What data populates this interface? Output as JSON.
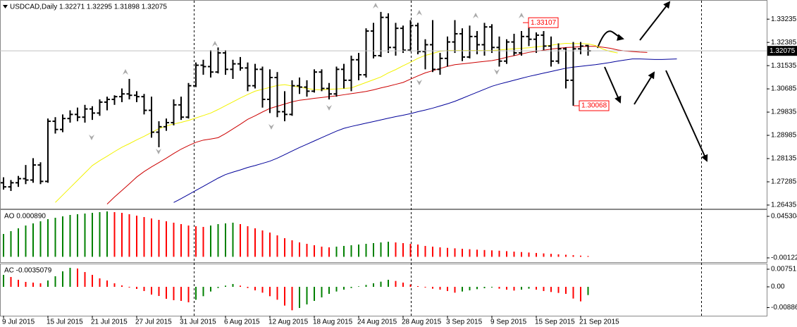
{
  "chart_data": [
    {
      "type": "ohlc",
      "title": "USDCAD,Daily  1.32271 1.32295 1.31898 1.32075",
      "categories": [
        "9 Jul 2015",
        null,
        null,
        null,
        null,
        null,
        "15 Jul 2015",
        null,
        null,
        null,
        null,
        null,
        "21 Jul 2015",
        null,
        null,
        null,
        null,
        null,
        "27 Jul 2015",
        null,
        null,
        null,
        null,
        null,
        "31 Jul 2015",
        null,
        null,
        null,
        null,
        null,
        "6 Aug 2015",
        null,
        null,
        null,
        null,
        null,
        "12 Aug 2015",
        null,
        null,
        null,
        null,
        null,
        "18 Aug 2015",
        null,
        null,
        null,
        null,
        null,
        "24 Aug 2015",
        null,
        null,
        null,
        null,
        null,
        "28 Aug 2015",
        null,
        null,
        null,
        null,
        null,
        "3 Sep 2015",
        null,
        null,
        null,
        null,
        null,
        "9 Sep 2015",
        null,
        null,
        null,
        null,
        null,
        "15 Sep 2015",
        null,
        null,
        null,
        null,
        null,
        "21 Sep 2015",
        null,
        null,
        null,
        null,
        null,
        null,
        null,
        null,
        null,
        null,
        null,
        null,
        null
      ],
      "ohlc": [
        [
          1.2725,
          1.2745,
          1.27,
          1.271
        ],
        [
          1.271,
          1.2735,
          1.2695,
          1.2725
        ],
        [
          1.2725,
          1.275,
          1.271,
          1.274
        ],
        [
          1.274,
          1.279,
          1.272,
          1.2735
        ],
        [
          1.2735,
          1.2815,
          1.2725,
          1.279
        ],
        [
          1.279,
          1.28,
          1.272,
          1.273
        ],
        [
          1.273,
          1.296,
          1.2725,
          1.295
        ],
        [
          1.295,
          1.2965,
          1.2905,
          1.292
        ],
        [
          1.292,
          1.2975,
          1.291,
          1.296
        ],
        [
          1.296,
          1.299,
          1.2945,
          1.2975
        ],
        [
          1.2975,
          1.3,
          1.295,
          1.2965
        ],
        [
          1.2965,
          1.301,
          1.2945,
          1.2995
        ],
        [
          1.2995,
          1.3005,
          1.2955,
          1.298
        ],
        [
          1.298,
          1.303,
          1.297,
          1.302
        ],
        [
          1.302,
          1.304,
          1.299,
          1.303
        ],
        [
          1.303,
          1.3045,
          1.301,
          1.304
        ],
        [
          1.304,
          1.307,
          1.302,
          1.305
        ],
        [
          1.305,
          1.3105,
          1.303,
          1.3045
        ],
        [
          1.3045,
          1.306,
          1.302,
          1.304
        ],
        [
          1.304,
          1.305,
          1.2975,
          1.299
        ],
        [
          1.299,
          1.304,
          1.289,
          1.291
        ],
        [
          1.291,
          1.295,
          1.2855,
          1.293
        ],
        [
          1.293,
          1.296,
          1.2915,
          1.2945
        ],
        [
          1.2945,
          1.303,
          1.2935,
          1.301
        ],
        [
          1.301,
          1.304,
          1.2955,
          1.2965
        ],
        [
          1.2965,
          1.309,
          1.296,
          1.308
        ],
        [
          1.308,
          1.3165,
          1.3075,
          1.3155
        ],
        [
          1.3155,
          1.3175,
          1.312,
          1.315
        ],
        [
          1.315,
          1.321,
          1.311,
          1.313
        ],
        [
          1.313,
          1.322,
          1.3125,
          1.32
        ],
        [
          1.32,
          1.321,
          1.312,
          1.314
        ],
        [
          1.314,
          1.3175,
          1.3105,
          1.316
        ],
        [
          1.316,
          1.3185,
          1.3135,
          1.3145
        ],
        [
          1.3145,
          1.3165,
          1.306,
          1.308
        ],
        [
          1.308,
          1.316,
          1.307,
          1.314
        ],
        [
          1.314,
          1.315,
          1.3,
          1.303
        ],
        [
          1.303,
          1.314,
          1.298,
          1.311
        ],
        [
          1.311,
          1.313,
          1.2965,
          1.2985
        ],
        [
          1.2985,
          1.306,
          1.295,
          1.2975
        ],
        [
          1.2975,
          1.31,
          1.297,
          1.308
        ],
        [
          1.308,
          1.311,
          1.305,
          1.3075
        ],
        [
          1.3075,
          1.31,
          1.304,
          1.306
        ],
        [
          1.306,
          1.314,
          1.3055,
          1.313
        ],
        [
          1.313,
          1.314,
          1.306,
          1.307
        ],
        [
          1.307,
          1.309,
          1.303,
          1.305
        ],
        [
          1.305,
          1.315,
          1.304,
          1.314
        ],
        [
          1.314,
          1.316,
          1.307,
          1.31
        ],
        [
          1.31,
          1.319,
          1.306,
          1.3175
        ],
        [
          1.3175,
          1.32,
          1.31,
          1.312
        ],
        [
          1.312,
          1.329,
          1.311,
          1.328
        ],
        [
          1.328,
          1.331,
          1.318,
          1.319
        ],
        [
          1.319,
          1.335,
          1.3185,
          1.333
        ],
        [
          1.333,
          1.3345,
          1.32,
          1.322
        ],
        [
          1.322,
          1.331,
          1.319,
          1.329
        ],
        [
          1.329,
          1.33,
          1.32,
          1.321
        ],
        [
          1.321,
          1.332,
          1.3205,
          1.33
        ],
        [
          1.33,
          1.331,
          1.3195,
          1.3205
        ],
        [
          1.3205,
          1.325,
          1.314,
          1.323
        ],
        [
          1.323,
          1.332,
          1.313,
          1.314
        ],
        [
          1.314,
          1.32,
          1.312,
          1.318
        ],
        [
          1.318,
          1.326,
          1.315,
          1.324
        ],
        [
          1.324,
          1.332,
          1.32,
          1.327
        ],
        [
          1.327,
          1.329,
          1.317,
          1.3185
        ],
        [
          1.3185,
          1.33,
          1.318,
          1.326
        ],
        [
          1.326,
          1.328,
          1.3195,
          1.323
        ],
        [
          1.323,
          1.331,
          1.319,
          1.3295
        ],
        [
          1.3295,
          1.3305,
          1.32,
          1.322
        ],
        [
          1.322,
          1.326,
          1.315,
          1.317
        ],
        [
          1.317,
          1.325,
          1.316,
          1.324
        ],
        [
          1.324,
          1.327,
          1.319,
          1.32
        ],
        [
          1.32,
          1.328,
          1.319,
          1.326
        ],
        [
          1.326,
          1.33107,
          1.3225,
          1.325
        ],
        [
          1.325,
          1.3275,
          1.32,
          1.3265
        ],
        [
          1.3265,
          1.328,
          1.321,
          1.3225
        ],
        [
          1.3225,
          1.326,
          1.315,
          1.317
        ],
        [
          1.317,
          1.3235,
          1.316,
          1.3215
        ],
        [
          1.3215,
          1.322,
          1.307,
          1.31
        ],
        [
          1.31,
          1.324,
          1.30068,
          1.3215
        ],
        [
          1.3215,
          1.324,
          1.3195,
          1.3225
        ],
        [
          1.32271,
          1.32295,
          1.31898,
          1.32075
        ],
        null,
        null,
        null,
        null,
        null,
        null,
        null,
        null,
        null,
        null,
        null,
        null
      ],
      "bar_color": "#000000",
      "series": [
        {
          "color": "#000099",
          "values": [
            null,
            null,
            null,
            null,
            null,
            null,
            null,
            null,
            null,
            null,
            null,
            null,
            null,
            null,
            null,
            null,
            null,
            null,
            null,
            null,
            null,
            null,
            null,
            1.2653,
            1.2667,
            1.2682,
            1.2697,
            1.2712,
            1.2727,
            1.2742,
            1.2755,
            1.2764,
            1.2772,
            1.2781,
            1.2788,
            1.2796,
            1.2804,
            1.2815,
            1.2828,
            1.2841,
            1.2854,
            1.2866,
            1.2878,
            1.289,
            1.2902,
            1.2914,
            1.2924,
            1.2931,
            1.2937,
            1.2943,
            1.2949,
            1.2955,
            1.2961,
            1.2967,
            1.2972,
            1.2978,
            1.2985,
            1.2991,
            1.2998,
            1.3006,
            1.3014,
            1.3023,
            1.3034,
            1.3045,
            1.3056,
            1.3067,
            1.3078,
            1.3086,
            1.3093,
            1.31,
            1.3107,
            1.3114,
            1.312,
            1.3126,
            1.3132,
            1.3138,
            1.3144,
            1.3148,
            1.3151,
            1.3154,
            1.3157,
            1.3161,
            1.3165,
            1.317,
            1.3174,
            1.3178,
            1.3178,
            1.3177,
            1.3176,
            1.3176,
            1.3177,
            1.3178
          ]
        },
        {
          "color": "#cc0000",
          "values": [
            null,
            null,
            null,
            null,
            null,
            null,
            null,
            null,
            null,
            null,
            null,
            null,
            null,
            null,
            1.2647,
            1.2673,
            1.2697,
            1.2721,
            1.2746,
            1.2766,
            1.2783,
            1.2799,
            1.2815,
            1.2832,
            1.2848,
            1.2861,
            1.2873,
            1.2881,
            1.2885,
            1.289,
            1.2905,
            1.2922,
            1.2939,
            1.2957,
            1.297,
            1.2984,
            1.2997,
            1.3005,
            1.3013,
            1.3021,
            1.3027,
            1.303,
            1.3034,
            1.3037,
            1.304,
            1.3043,
            1.3047,
            1.3051,
            1.3055,
            1.3059,
            1.3065,
            1.3072,
            1.3078,
            1.3085,
            1.3092,
            1.3104,
            1.3116,
            1.3127,
            1.3135,
            1.3143,
            1.3151,
            1.3157,
            1.316,
            1.3163,
            1.3166,
            1.3169,
            1.3172,
            1.3177,
            1.3184,
            1.319,
            1.3196,
            1.3202,
            1.3206,
            1.321,
            1.3214,
            1.3217,
            1.322,
            1.3221,
            1.3223,
            1.3224,
            1.3224,
            1.3221,
            1.3217,
            1.3211,
            1.3207,
            1.3205,
            1.3203,
            1.3202,
            null,
            null,
            null,
            null
          ]
        },
        {
          "color": "#f2f200",
          "values": [
            null,
            null,
            null,
            null,
            null,
            null,
            null,
            1.2653,
            1.268,
            1.2707,
            1.2734,
            1.2761,
            1.2788,
            1.2806,
            1.2822,
            1.2839,
            1.2855,
            1.2868,
            1.2882,
            1.2895,
            1.2909,
            1.2923,
            1.2933,
            1.294,
            1.2946,
            1.2953,
            1.2962,
            1.2971,
            1.298,
            1.2993,
            1.3007,
            1.3021,
            1.3035,
            1.3048,
            1.306,
            1.3067,
            1.3074,
            1.3081,
            1.3084,
            1.3079,
            1.3075,
            1.307,
            1.3066,
            1.3065,
            1.3067,
            1.3068,
            1.307,
            1.3072,
            1.3082,
            1.3092,
            1.3102,
            1.3112,
            1.3127,
            1.3139,
            1.3153,
            1.3166,
            1.318,
            1.3191,
            1.3198,
            1.3206,
            1.3209,
            1.3209,
            1.3209,
            1.3209,
            1.3209,
            1.3209,
            1.3209,
            1.3211,
            1.3213,
            1.3215,
            1.3217,
            1.3219,
            1.3222,
            1.3225,
            1.3228,
            1.3232,
            1.3235,
            1.3234,
            1.3234,
            1.3233,
            1.3227,
            1.3214,
            1.3205,
            1.32,
            null,
            null,
            null,
            null,
            null,
            null,
            null,
            null
          ]
        }
      ],
      "ylim": [
        1.26305,
        1.3391
      ],
      "yticks": [
        1.33235,
        1.32385,
        1.31535,
        1.30685,
        1.29835,
        1.28985,
        1.28135,
        1.27285,
        1.26435
      ],
      "last_price": 1.32075,
      "price_labels": [
        1.33107,
        1.30068
      ],
      "grid": false
    },
    {
      "type": "bar",
      "title": "AO 0.000890",
      "values": [
        0.02559,
        0.02874,
        0.0319,
        0.03505,
        0.03742,
        0.03978,
        0.04215,
        0.04373,
        0.0453,
        0.04688,
        0.04767,
        0.04846,
        0.04925,
        0.05004,
        0.05083,
        0.05004,
        0.04925,
        0.04767,
        0.04609,
        0.04452,
        0.04294,
        0.04136,
        0.03978,
        0.03821,
        0.03663,
        0.03505,
        0.03426,
        0.03348,
        0.03505,
        0.03663,
        0.03742,
        0.03821,
        0.03663,
        0.03426,
        0.0319,
        0.02953,
        0.02716,
        0.02401,
        0.02085,
        0.01849,
        0.01612,
        0.01454,
        0.01296,
        0.01139,
        0.0106,
        0.01139,
        0.01218,
        0.01296,
        0.01375,
        0.01454,
        0.01533,
        0.01612,
        0.01691,
        0.01612,
        0.01533,
        0.01454,
        0.01375,
        0.01218,
        0.01139,
        0.0106,
        0.01,
        0.0095,
        0.009,
        0.0085,
        0.008,
        0.0076,
        0.0072,
        0.0068,
        0.0063,
        0.0058,
        0.0053,
        0.0048,
        0.0043,
        0.0038,
        0.0033,
        0.0028,
        0.0023,
        0.0018,
        0.0013,
        0.00089
      ],
      "up_color": "#008000",
      "down_color": "#ff0000",
      "ylim": [
        -0.006,
        0.0524
      ],
      "yticks": [
        0.045304,
        -0.001225
      ]
    },
    {
      "type": "bar",
      "title": "AC -0.0035079",
      "values": [
        0.0051,
        0.0042,
        0.003,
        0.0021,
        0.0018,
        0.0015,
        0.0027,
        0.0045,
        0.0066,
        0.0081,
        0.0078,
        0.0063,
        0.0051,
        0.0036,
        0.0027,
        0.0015,
        0.0006,
        -0.0003,
        -0.0009,
        -0.0018,
        -0.0033,
        -0.0039,
        -0.0051,
        -0.0057,
        -0.006,
        -0.0066,
        -0.0055,
        -0.004,
        -0.002,
        -0.0005,
        0.0005,
        0.0012,
        0.0005,
        -0.0005,
        -0.0015,
        -0.0025,
        -0.004,
        -0.0055,
        -0.008,
        -0.01,
        -0.009,
        -0.0075,
        -0.006,
        -0.0045,
        -0.003,
        -0.002,
        -0.0012,
        -0.0005,
        0.0002,
        0.0008,
        0.0015,
        0.0022,
        0.003,
        0.0025,
        0.0018,
        0.001,
        0.0003,
        -0.0003,
        -0.0008,
        -0.0012,
        -0.0018,
        -0.0025,
        -0.002,
        -0.0015,
        -0.001,
        -0.0006,
        -0.0003,
        -0.0008,
        -0.0012,
        -0.0016,
        -0.0012,
        -0.0008,
        -0.0012,
        -0.0018,
        -0.0022,
        -0.0026,
        -0.003,
        -0.005,
        -0.0062,
        -0.0035079
      ],
      "up_color": "#008000",
      "down_color": "#ff0000",
      "ylim": [
        -0.01232,
        0.00961
      ],
      "yticks": [
        0.00751,
        {
          "value": 0,
          "label": "0.00"
        },
        -0.008866
      ]
    }
  ]
}
